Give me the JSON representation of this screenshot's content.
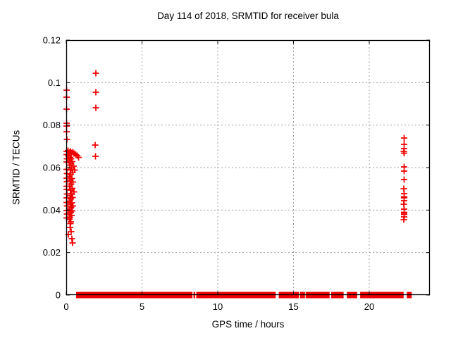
{
  "colors": {
    "marker": "#ee0000",
    "grid": "#a0a0a0",
    "axis": "#000000"
  },
  "chart_data": {
    "type": "scatter",
    "title": "Day 114 of 2018, SRMTID for receiver bula",
    "xlabel": "GPS time / hours",
    "ylabel": "SRMTID / TECUs",
    "xlim": [
      0,
      24
    ],
    "ylim": [
      0,
      0.12
    ],
    "xticks": [
      0,
      5,
      10,
      15,
      20
    ],
    "xtick_labels": [
      "0",
      "5",
      "10",
      "15",
      "20"
    ],
    "yticks": [
      0,
      0.02,
      0.04,
      0.06,
      0.08,
      0.1,
      0.12
    ],
    "ytick_labels": [
      "0",
      "0.02",
      "0.04",
      "0.06",
      "0.08",
      "0.1",
      "0.12"
    ],
    "grid": true,
    "legend": "none",
    "marker": "plus",
    "series": [
      {
        "name": "SRMTID",
        "points": [
          [
            0.02,
            0.0965
          ],
          [
            0.02,
            0.0932
          ],
          [
            0.03,
            0.0875
          ],
          [
            0.02,
            0.0809
          ],
          [
            0.03,
            0.0795
          ],
          [
            0.02,
            0.0769
          ],
          [
            0.04,
            0.0733
          ],
          [
            0.03,
            0.0676
          ],
          [
            0.02,
            0.0662
          ],
          [
            0.05,
            0.0641
          ],
          [
            0.03,
            0.0627
          ],
          [
            0.02,
            0.0592
          ],
          [
            0.04,
            0.0572
          ],
          [
            0.02,
            0.0551
          ],
          [
            0.05,
            0.0533
          ],
          [
            0.03,
            0.0512
          ],
          [
            0.02,
            0.0497
          ],
          [
            0.04,
            0.0475
          ],
          [
            0.02,
            0.0457
          ],
          [
            0.03,
            0.0436
          ],
          [
            0.05,
            0.0419
          ],
          [
            0.02,
            0.0398
          ],
          [
            0.04,
            0.0381
          ],
          [
            0.03,
            0.0363
          ],
          [
            0.12,
            0.0679
          ],
          [
            0.2,
            0.0672
          ],
          [
            0.28,
            0.0676
          ],
          [
            0.36,
            0.067
          ],
          [
            0.44,
            0.0673
          ],
          [
            0.52,
            0.0666
          ],
          [
            0.62,
            0.0661
          ],
          [
            0.72,
            0.0656
          ],
          [
            0.82,
            0.0648
          ],
          [
            0.15,
            0.0655
          ],
          [
            0.25,
            0.0648
          ],
          [
            0.33,
            0.0642
          ],
          [
            0.18,
            0.0634
          ],
          [
            0.4,
            0.0628
          ],
          [
            0.3,
            0.0621
          ],
          [
            0.22,
            0.0612
          ],
          [
            0.48,
            0.0607
          ],
          [
            0.35,
            0.0598
          ],
          [
            0.27,
            0.0589
          ],
          [
            0.55,
            0.0589
          ],
          [
            0.42,
            0.0579
          ],
          [
            0.3,
            0.0568
          ],
          [
            0.2,
            0.0559
          ],
          [
            0.38,
            0.0549
          ],
          [
            0.25,
            0.0541
          ],
          [
            0.45,
            0.0532
          ],
          [
            0.32,
            0.0522
          ],
          [
            0.22,
            0.0512
          ],
          [
            0.4,
            0.0503
          ],
          [
            0.28,
            0.0494
          ],
          [
            0.5,
            0.0486
          ],
          [
            0.35,
            0.0477
          ],
          [
            0.25,
            0.0468
          ],
          [
            0.42,
            0.0459
          ],
          [
            0.3,
            0.0452
          ],
          [
            0.2,
            0.0443
          ],
          [
            0.38,
            0.0434
          ],
          [
            0.27,
            0.0427
          ],
          [
            0.45,
            0.0419
          ],
          [
            0.33,
            0.0412
          ],
          [
            0.22,
            0.0405
          ],
          [
            0.4,
            0.0396
          ],
          [
            0.3,
            0.0389
          ],
          [
            0.18,
            0.0381
          ],
          [
            0.35,
            0.0374
          ],
          [
            0.25,
            0.0366
          ],
          [
            0.2,
            0.0356
          ],
          [
            0.28,
            0.0336
          ],
          [
            0.3,
            0.0345
          ],
          [
            0.25,
            0.0318
          ],
          [
            0.32,
            0.0298
          ],
          [
            0.15,
            0.0285
          ],
          [
            0.38,
            0.0265
          ],
          [
            0.42,
            0.0245
          ],
          [
            1.95,
            0.1044
          ],
          [
            1.95,
            0.0955
          ],
          [
            1.95,
            0.0882
          ],
          [
            1.91,
            0.0706
          ],
          [
            1.93,
            0.0653
          ],
          [
            22.3,
            0.0739
          ],
          [
            22.3,
            0.0709
          ],
          [
            22.31,
            0.069
          ],
          [
            22.29,
            0.0676
          ],
          [
            22.3,
            0.0668
          ],
          [
            22.3,
            0.0603
          ],
          [
            22.31,
            0.0583
          ],
          [
            22.3,
            0.0544
          ],
          [
            22.29,
            0.0501
          ],
          [
            22.3,
            0.0477
          ],
          [
            22.3,
            0.0463
          ],
          [
            22.31,
            0.0458
          ],
          [
            22.3,
            0.0444
          ],
          [
            22.29,
            0.0428
          ],
          [
            22.3,
            0.0404
          ],
          [
            22.31,
            0.039
          ],
          [
            22.3,
            0.0386
          ],
          [
            22.3,
            0.0379
          ],
          [
            22.3,
            0.0368
          ],
          [
            22.29,
            0.0355
          ]
        ],
        "baseline_value": 0,
        "baseline_segments": [
          [
            0.65,
            8.33
          ],
          [
            8.4,
            8.5
          ],
          [
            8.58,
            13.82
          ],
          [
            14.03,
            15.35
          ],
          [
            15.42,
            15.47
          ],
          [
            15.53,
            15.58
          ],
          [
            15.64,
            15.69
          ],
          [
            15.8,
            17.38
          ],
          [
            17.49,
            18.31
          ],
          [
            18.52,
            19.2
          ],
          [
            19.4,
            22.27
          ],
          [
            22.48,
            22.8
          ]
        ]
      }
    ]
  }
}
